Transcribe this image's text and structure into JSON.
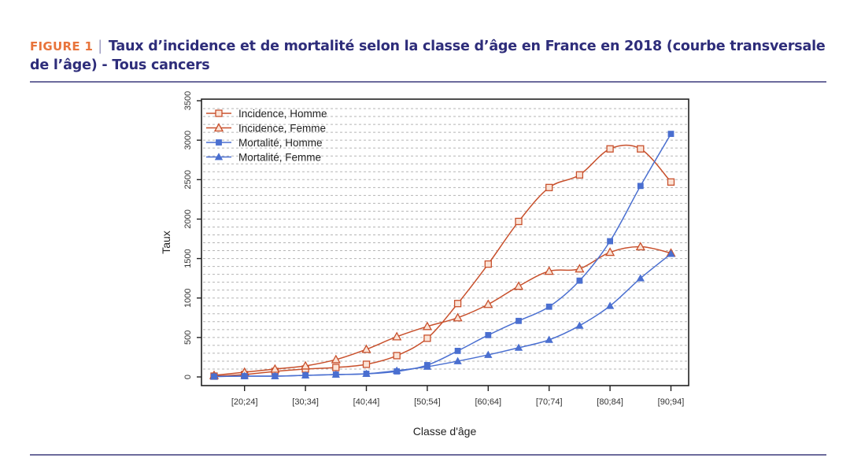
{
  "header": {
    "figure_label": "FIGURE 1",
    "title_line1": "Taux d’incidence et de mortalité selon la classe d’âge en France en 2018 (courbe transversale",
    "title_line2": "de l’âge) - Tous cancers"
  },
  "chart_data": {
    "type": "line",
    "title": "Taux d’incidence et de mortalité selon la classe d’âge en France en 2018 (courbe transversale de l’âge) - Tous cancers",
    "xlabel": "Classe d'âge",
    "ylabel": "Taux",
    "ylim": [
      0,
      3500
    ],
    "yticks": [
      0,
      500,
      1000,
      1500,
      2000,
      2500,
      3000,
      3500
    ],
    "categories": [
      "[15;19]",
      "[20;24]",
      "[25;29]",
      "[30;34]",
      "[35;39]",
      "[40;44]",
      "[45;49]",
      "[50;54]",
      "[55;59]",
      "[60;64]",
      "[65;69]",
      "[70;74]",
      "[75;79]",
      "[80;84]",
      "[85;89]",
      "[90;94]"
    ],
    "xtick_labels": [
      "[20;24]",
      "[30;34]",
      "[40;44]",
      "[50;54]",
      "[60;64]",
      "[70;74]",
      "[80;84]",
      "[90;94]"
    ],
    "grid": true,
    "legend_position": "top-left",
    "series": [
      {
        "name": "Incidence, Homme",
        "color": "#c8502c",
        "marker": "open-square",
        "values": [
          10,
          30,
          70,
          100,
          120,
          160,
          270,
          490,
          930,
          1430,
          1970,
          2400,
          2560,
          2890,
          2890,
          2470
        ]
      },
      {
        "name": "Incidence, Femme",
        "color": "#c8502c",
        "marker": "open-triangle",
        "values": [
          20,
          60,
          100,
          140,
          220,
          350,
          510,
          640,
          750,
          920,
          1150,
          1340,
          1370,
          1580,
          1650,
          1570
        ]
      },
      {
        "name": "Mortalité, Homme",
        "color": "#4a6fd0",
        "marker": "filled-square",
        "values": [
          5,
          10,
          10,
          20,
          30,
          40,
          70,
          150,
          330,
          530,
          710,
          890,
          1220,
          1720,
          2420,
          3080
        ]
      },
      {
        "name": "Mortalité, Femme",
        "color": "#4a6fd0",
        "marker": "filled-triangle",
        "values": [
          5,
          10,
          10,
          20,
          30,
          40,
          80,
          130,
          200,
          280,
          370,
          470,
          650,
          900,
          1250,
          1560
        ]
      }
    ]
  }
}
